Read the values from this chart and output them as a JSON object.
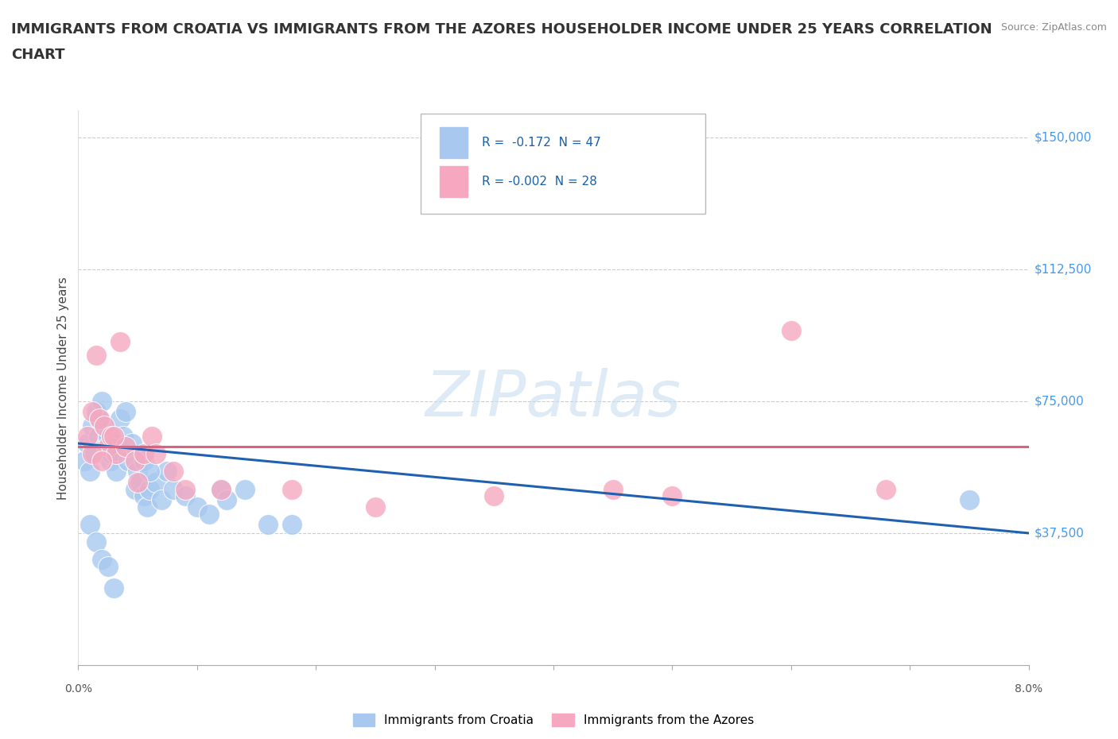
{
  "title_line1": "IMMIGRANTS FROM CROATIA VS IMMIGRANTS FROM THE AZORES HOUSEHOLDER INCOME UNDER 25 YEARS CORRELATION",
  "title_line2": "CHART",
  "source": "Source: ZipAtlas.com",
  "ylabel": "Householder Income Under 25 years",
  "xmin": 0.0,
  "xmax": 8.0,
  "ymin": 0,
  "ymax": 150000,
  "croatia_R": -0.172,
  "croatia_N": 47,
  "azores_R": -0.002,
  "azores_N": 28,
  "croatia_color": "#a8c8f0",
  "azores_color": "#f5a8c0",
  "croatia_line_color": "#2060b0",
  "azores_line_color": "#e06080",
  "watermark_color": "#c8dff0",
  "ytick_vals": [
    37500,
    75000,
    112500,
    150000
  ],
  "ytick_labels": [
    "$37,500",
    "$75,000",
    "$112,500",
    "$150,000"
  ],
  "croatia_x": [
    0.05,
    0.08,
    0.1,
    0.12,
    0.14,
    0.15,
    0.17,
    0.18,
    0.2,
    0.22,
    0.24,
    0.25,
    0.27,
    0.28,
    0.3,
    0.32,
    0.35,
    0.38,
    0.4,
    0.42,
    0.45,
    0.48,
    0.5,
    0.52,
    0.55,
    0.58,
    0.6,
    0.65,
    0.7,
    0.75,
    0.8,
    0.9,
    1.0,
    1.1,
    1.2,
    1.4,
    1.6,
    1.8,
    0.1,
    0.15,
    0.2,
    0.25,
    0.3,
    0.55,
    0.6,
    1.25,
    7.5
  ],
  "croatia_y": [
    58000,
    63000,
    55000,
    68000,
    60000,
    72000,
    65000,
    70000,
    75000,
    68000,
    62000,
    65000,
    58000,
    60000,
    63000,
    55000,
    70000,
    65000,
    72000,
    58000,
    63000,
    50000,
    55000,
    52000,
    48000,
    45000,
    50000,
    52000,
    47000,
    55000,
    50000,
    48000,
    45000,
    43000,
    50000,
    50000,
    40000,
    40000,
    40000,
    35000,
    30000,
    28000,
    22000,
    58000,
    55000,
    47000,
    47000
  ],
  "azores_x": [
    0.08,
    0.12,
    0.15,
    0.18,
    0.22,
    0.25,
    0.28,
    0.32,
    0.35,
    0.4,
    0.48,
    0.55,
    0.62,
    0.8,
    1.2,
    1.8,
    2.5,
    3.5,
    4.5,
    5.0,
    6.0,
    6.8,
    0.12,
    0.2,
    0.3,
    0.5,
    0.65,
    0.9
  ],
  "azores_y": [
    65000,
    72000,
    88000,
    70000,
    68000,
    62000,
    65000,
    60000,
    92000,
    62000,
    58000,
    60000,
    65000,
    55000,
    50000,
    50000,
    45000,
    48000,
    50000,
    48000,
    95000,
    50000,
    60000,
    58000,
    65000,
    52000,
    60000,
    50000
  ]
}
